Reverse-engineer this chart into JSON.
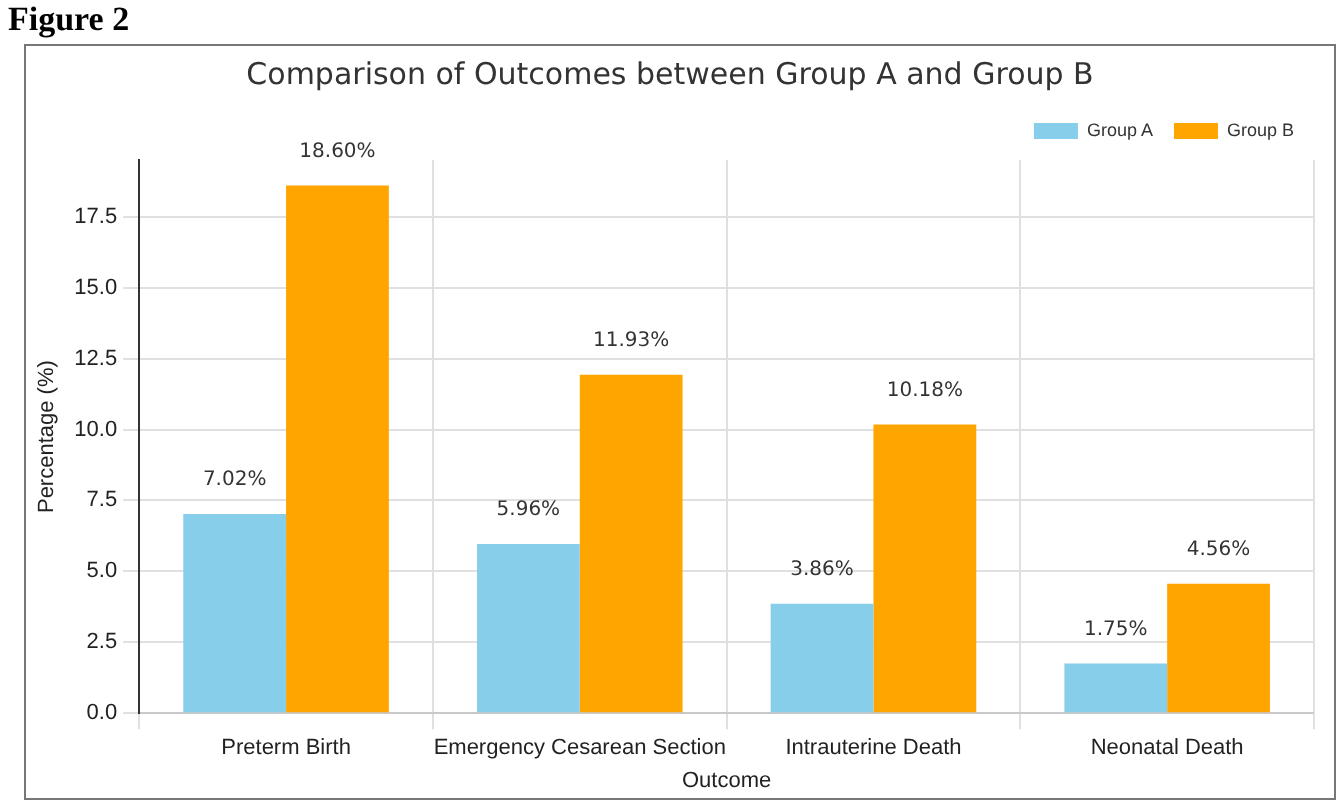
{
  "chart_data": {
    "type": "bar",
    "title": "Comparison of Outcomes between Group A and Group B",
    "xlabel": "Outcome",
    "ylabel": "Percentage (%)",
    "annotations": [
      "Figure 2"
    ],
    "categories": [
      "Preterm Birth",
      "Emergency Cesarean Section",
      "Intrauterine Death",
      "Neonatal Death"
    ],
    "series": [
      {
        "name": "Group A",
        "color": "#87ceeb",
        "values": [
          7.02,
          5.96,
          3.86,
          1.75
        ],
        "value_labels": [
          "7.02%",
          "5.96%",
          "3.86%",
          "1.75%"
        ]
      },
      {
        "name": "Group B",
        "color": "#ffa500",
        "values": [
          18.6,
          11.93,
          10.18,
          4.56
        ],
        "value_labels": [
          "18.60%",
          "11.93%",
          "10.18%",
          "4.56%"
        ]
      }
    ],
    "ylim": [
      0,
      19.5
    ],
    "yticks": [
      {
        "value": 0,
        "label": "0.0"
      },
      2.5,
      {
        "value": 5,
        "label": "5.0"
      },
      7.5,
      {
        "value": 10,
        "label": "10.0"
      },
      12.5,
      {
        "value": 15,
        "label": "15.0"
      },
      17.5
    ],
    "grid": true,
    "legend": "top right"
  }
}
